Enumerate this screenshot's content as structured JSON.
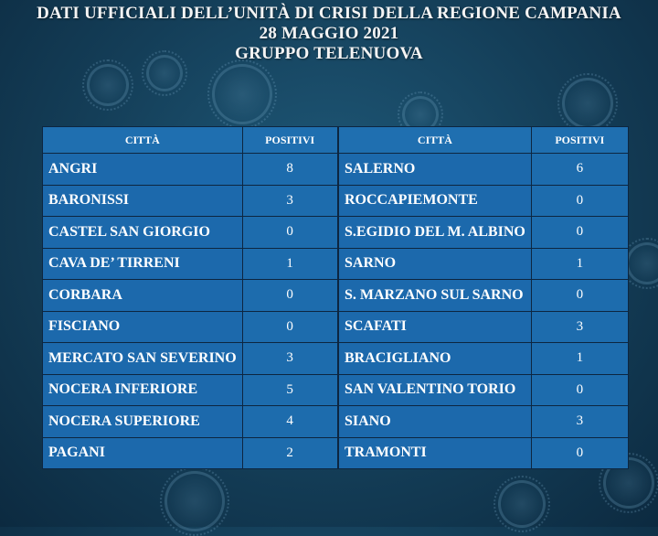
{
  "header": {
    "line1": "DATI UFFICIALI DELL’UNITÀ DI CRISI DELLA REGIONE CAMPANIA",
    "line2": "28 MAGGIO 2021",
    "line3": "GRUPPO TELENUOVA"
  },
  "columns": {
    "city": "CITTÀ",
    "positives": "POSITIVI"
  },
  "left_table": [
    {
      "city": "ANGRI",
      "positives": "8"
    },
    {
      "city": "BARONISSI",
      "positives": "3"
    },
    {
      "city": "CASTEL SAN GIORGIO",
      "positives": "0"
    },
    {
      "city": "CAVA DE’ TIRRENI",
      "positives": "1"
    },
    {
      "city": "CORBARA",
      "positives": "0"
    },
    {
      "city": "FISCIANO",
      "positives": "0"
    },
    {
      "city": "MERCATO SAN SEVERINO",
      "positives": "3"
    },
    {
      "city": "NOCERA INFERIORE",
      "positives": "5"
    },
    {
      "city": "NOCERA SUPERIORE",
      "positives": "4"
    },
    {
      "city": "PAGANI",
      "positives": "2"
    }
  ],
  "right_table": [
    {
      "city": "SALERNO",
      "positives": "6"
    },
    {
      "city": "ROCCAPIEMONTE",
      "positives": "0"
    },
    {
      "city": "S.EGIDIO DEL M. ALBINO",
      "positives": "0"
    },
    {
      "city": "SARNO",
      "positives": "1"
    },
    {
      "city": "S. MARZANO SUL SARNO",
      "positives": "0"
    },
    {
      "city": "SCAFATI",
      "positives": "3"
    },
    {
      "city": "BRACIGLIANO",
      "positives": "1"
    },
    {
      "city": "SAN VALENTINO TORIO",
      "positives": "0"
    },
    {
      "city": "SIANO",
      "positives": "3"
    },
    {
      "city": "TRAMONTI",
      "positives": "0"
    }
  ]
}
